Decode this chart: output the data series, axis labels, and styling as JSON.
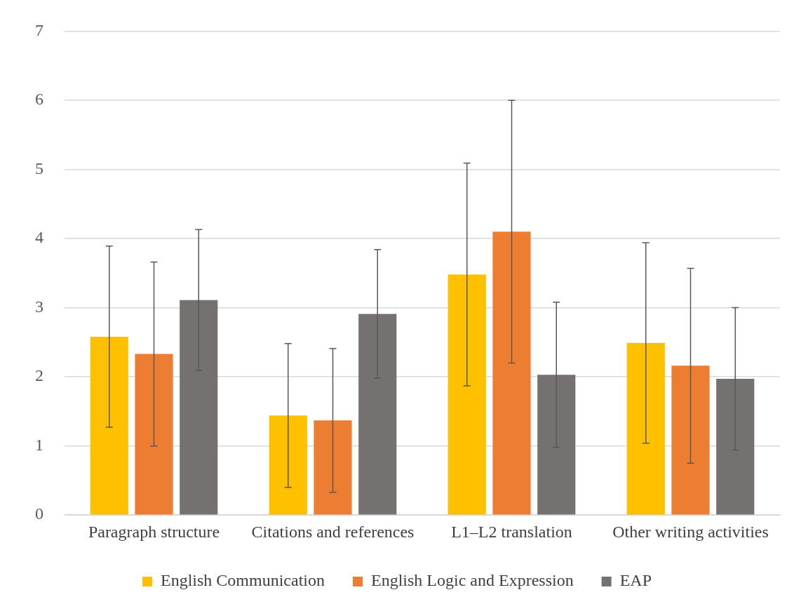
{
  "chart_data": {
    "type": "bar",
    "categories": [
      "Paragraph structure",
      "Citations and references",
      "L1–L2 translation",
      "Other writing activities"
    ],
    "series": [
      {
        "name": "English Communication",
        "color": "#ffc000",
        "values": [
          2.58,
          1.44,
          3.48,
          2.49
        ],
        "errors": [
          1.31,
          1.04,
          1.61,
          1.45
        ]
      },
      {
        "name": "English Logic and Expression",
        "color": "#ed7d31",
        "values": [
          2.33,
          1.37,
          4.1,
          2.16
        ],
        "errors": [
          1.33,
          1.04,
          1.9,
          1.41
        ]
      },
      {
        "name": "EAP",
        "color": "#767171",
        "values": [
          3.11,
          2.91,
          2.03,
          1.97
        ],
        "errors": [
          1.02,
          0.93,
          1.05,
          1.03
        ]
      }
    ],
    "ylim": [
      0,
      7
    ],
    "yticks": [
      0,
      1,
      2,
      3,
      4,
      5,
      6,
      7
    ],
    "grid": "y",
    "legend": "bottom"
  }
}
